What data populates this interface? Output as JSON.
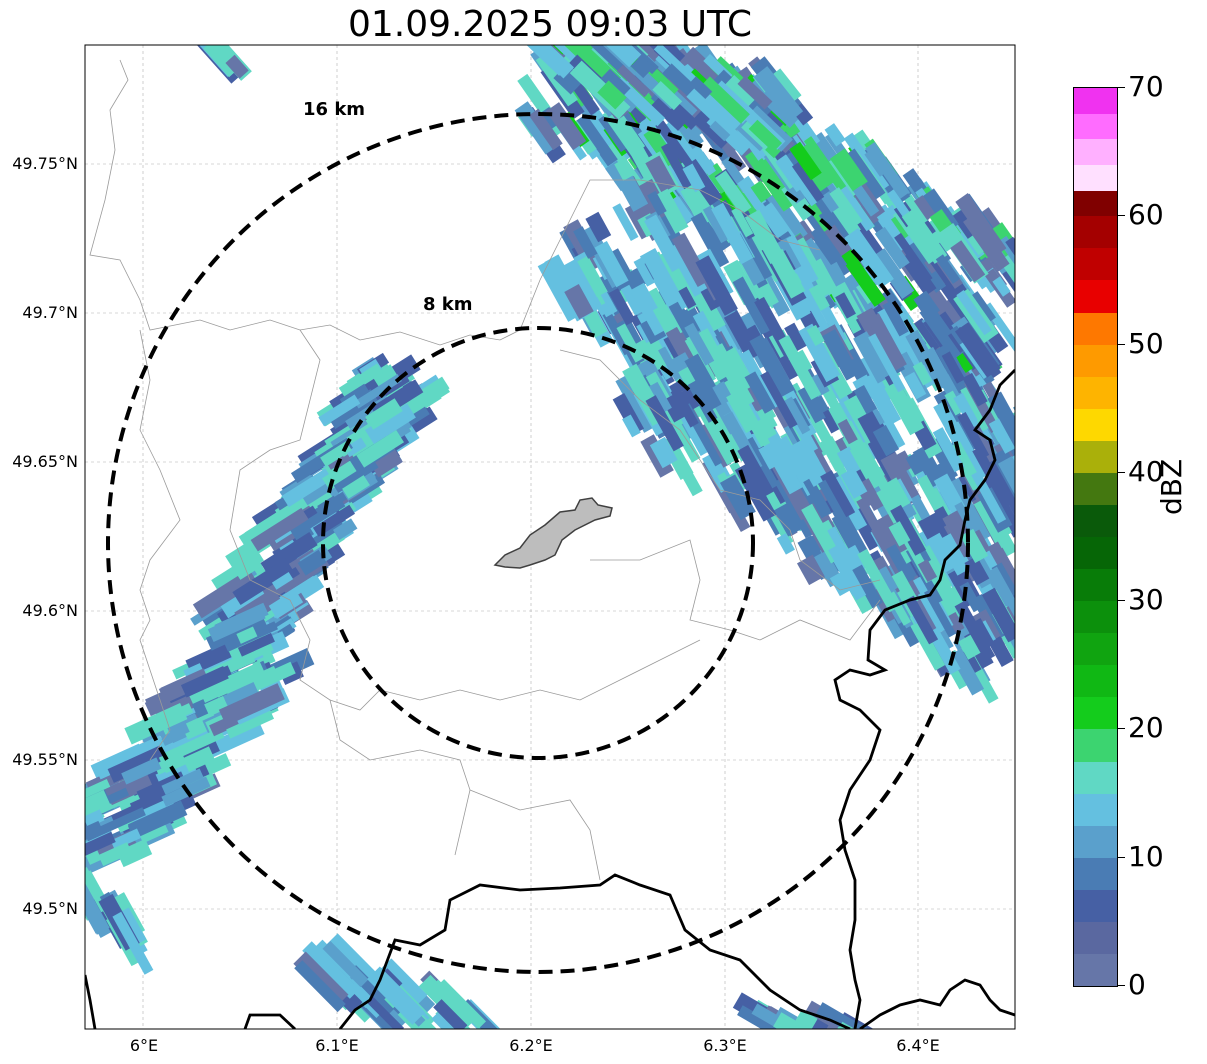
{
  "title": "01.09.2025 09:03 UTC",
  "map": {
    "lon_range": [
      5.97,
      6.45
    ],
    "lat_range": [
      49.46,
      49.79
    ],
    "y_ticks": [
      "49.75°N",
      "49.7°N",
      "49.65°N",
      "49.6°N",
      "49.55°N",
      "49.5°N"
    ],
    "x_ticks": [
      "6°E",
      "6.1°E",
      "6.2°E",
      "6.3°E",
      "6.4°E"
    ],
    "rings": [
      {
        "label": "8 km",
        "radius_km": 8
      },
      {
        "label": "16 km",
        "radius_km": 16
      }
    ],
    "radar_center": {
      "lon": 6.2,
      "lat": 49.622
    },
    "city_area": "shaded grey city outline at radar center"
  },
  "colorbar": {
    "label": "dBZ",
    "min": 0,
    "max": 70,
    "ticks": [
      "0",
      "10",
      "20",
      "30",
      "40",
      "50",
      "60",
      "70"
    ],
    "colors": [
      "#6676a8",
      "#5a68a0",
      "#4660a4",
      "#4a7cb4",
      "#5aa0cc",
      "#64c0e0",
      "#60d8c4",
      "#3cd470",
      "#14cc1c",
      "#10b814",
      "#10a410",
      "#0c900c",
      "#087c08",
      "#066606",
      "#0a5a0a",
      "#447810",
      "#aab00a",
      "#fed800",
      "#feb400",
      "#fe9a00",
      "#fe7800",
      "#e80000",
      "#c00000",
      "#a40000",
      "#800000",
      "#ffe0ff",
      "#ffb0ff",
      "#ff6cff",
      "#f032f0"
    ]
  }
}
